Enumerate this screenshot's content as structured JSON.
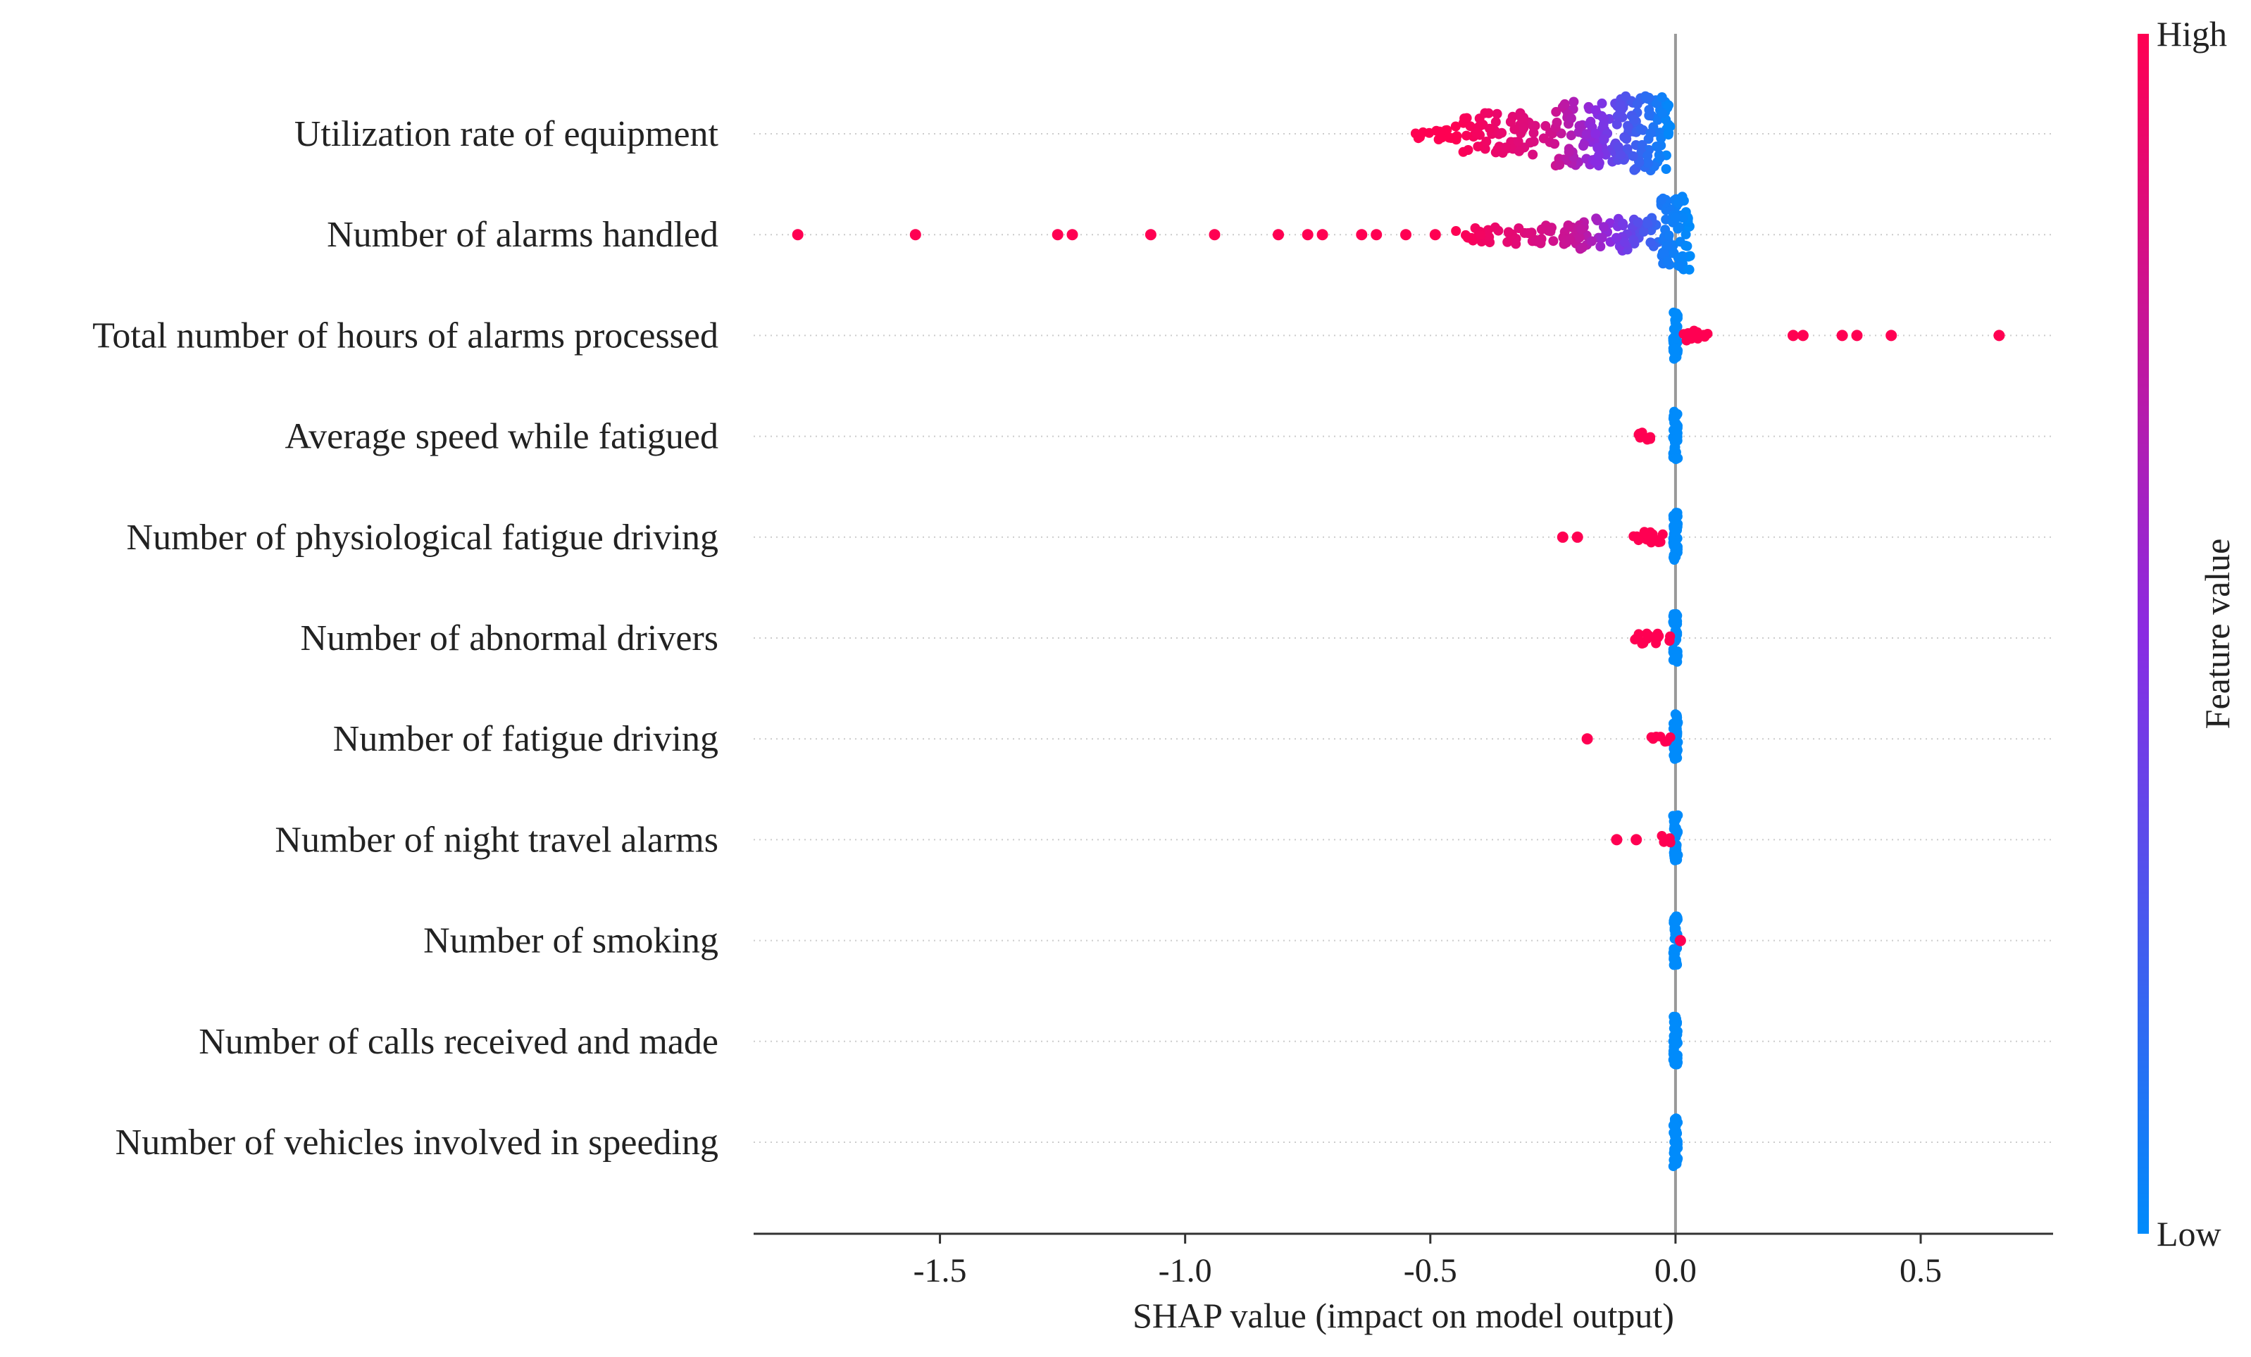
{
  "chart_data": {
    "type": "scatter",
    "subtype": "shap-beeswarm",
    "title": "",
    "xlabel": "SHAP value (impact on model output)",
    "ylabel": "",
    "xlim": [
      -1.88,
      0.77
    ],
    "xticks": [
      -1.5,
      -1.0,
      -0.5,
      0.0,
      0.5
    ],
    "xtick_labels": [
      "-1.5",
      "-1.0",
      "-0.5",
      "0.0",
      "0.5"
    ],
    "zero_line": 0.0,
    "colorbar": {
      "label": "Feature value",
      "high_label": "High",
      "low_label": "Low",
      "high_color": "#ff0052",
      "mid_color": "#8a2be2",
      "low_color": "#008bfb"
    },
    "features": [
      {
        "name": "Utilization rate of equipment",
        "clusters": [
          {
            "from": -0.54,
            "to": -0.45,
            "count": 16,
            "spread": 0.15,
            "color_from": 1.0,
            "color_to": 1.0
          },
          {
            "from": -0.45,
            "to": -0.25,
            "count": 70,
            "spread": 0.55,
            "color_from": 1.0,
            "color_to": 0.8
          },
          {
            "from": -0.25,
            "to": -0.12,
            "count": 80,
            "spread": 0.85,
            "color_from": 0.8,
            "color_to": 0.35
          },
          {
            "from": -0.12,
            "to": -0.01,
            "count": 100,
            "spread": 1.0,
            "color_from": 0.35,
            "color_to": 0.0
          }
        ],
        "points": []
      },
      {
        "name": "Number of alarms handled",
        "clusters": [
          {
            "from": -0.45,
            "to": -0.2,
            "count": 60,
            "spread": 0.25,
            "color_from": 1.0,
            "color_to": 0.75
          },
          {
            "from": -0.2,
            "to": -0.03,
            "count": 60,
            "spread": 0.45,
            "color_from": 0.75,
            "color_to": 0.15
          },
          {
            "from": -0.03,
            "to": 0.03,
            "count": 70,
            "spread": 1.0,
            "color_from": 0.1,
            "color_to": 0.0
          }
        ],
        "points": [
          {
            "x": -1.79,
            "c": 1.0
          },
          {
            "x": -1.55,
            "c": 1.0
          },
          {
            "x": -1.26,
            "c": 1.0
          },
          {
            "x": -1.23,
            "c": 1.0
          },
          {
            "x": -1.07,
            "c": 1.0
          },
          {
            "x": -0.94,
            "c": 1.0
          },
          {
            "x": -0.81,
            "c": 1.0
          },
          {
            "x": -0.75,
            "c": 1.0
          },
          {
            "x": -0.72,
            "c": 1.0
          },
          {
            "x": -0.64,
            "c": 1.0
          },
          {
            "x": -0.61,
            "c": 1.0
          },
          {
            "x": -0.55,
            "c": 1.0
          },
          {
            "x": -0.49,
            "c": 1.0
          }
        ]
      },
      {
        "name": "Total number of hours of alarms processed",
        "clusters": [
          {
            "from": -0.005,
            "to": 0.005,
            "count": 40,
            "spread": 0.65,
            "color_from": 0.0,
            "color_to": 0.0
          },
          {
            "from": 0.01,
            "to": 0.07,
            "count": 12,
            "spread": 0.15,
            "color_from": 1.0,
            "color_to": 1.0
          }
        ],
        "points": [
          {
            "x": 0.24,
            "c": 1.0
          },
          {
            "x": 0.26,
            "c": 1.0
          },
          {
            "x": 0.34,
            "c": 1.0
          },
          {
            "x": 0.37,
            "c": 1.0
          },
          {
            "x": 0.44,
            "c": 1.0
          },
          {
            "x": 0.66,
            "c": 1.0
          }
        ]
      },
      {
        "name": "Average speed while fatigued",
        "clusters": [
          {
            "from": -0.005,
            "to": 0.005,
            "count": 40,
            "spread": 0.65,
            "color_from": 0.0,
            "color_to": 0.0
          },
          {
            "from": -0.09,
            "to": -0.05,
            "count": 10,
            "spread": 0.12,
            "color_from": 1.0,
            "color_to": 1.0
          }
        ],
        "points": []
      },
      {
        "name": "Number of physiological fatigue driving",
        "clusters": [
          {
            "from": -0.005,
            "to": 0.005,
            "count": 40,
            "spread": 0.65,
            "color_from": 0.0,
            "color_to": 0.0
          },
          {
            "from": -0.1,
            "to": -0.02,
            "count": 14,
            "spread": 0.15,
            "color_from": 1.0,
            "color_to": 1.0
          }
        ],
        "points": [
          {
            "x": -0.23,
            "c": 1.0
          },
          {
            "x": -0.2,
            "c": 1.0
          }
        ]
      },
      {
        "name": "Number of abnormal drivers",
        "clusters": [
          {
            "from": -0.005,
            "to": 0.005,
            "count": 40,
            "spread": 0.65,
            "color_from": 0.0,
            "color_to": 0.0
          },
          {
            "from": -0.09,
            "to": -0.01,
            "count": 20,
            "spread": 0.15,
            "color_from": 1.0,
            "color_to": 1.0
          }
        ],
        "points": []
      },
      {
        "name": "Number of fatigue driving",
        "clusters": [
          {
            "from": -0.005,
            "to": 0.005,
            "count": 40,
            "spread": 0.65,
            "color_from": 0.0,
            "color_to": 0.0
          },
          {
            "from": -0.05,
            "to": -0.01,
            "count": 8,
            "spread": 0.12,
            "color_from": 1.0,
            "color_to": 1.0
          }
        ],
        "points": [
          {
            "x": -0.18,
            "c": 1.0
          }
        ]
      },
      {
        "name": "Number of night travel alarms",
        "clusters": [
          {
            "from": -0.005,
            "to": 0.005,
            "count": 40,
            "spread": 0.65,
            "color_from": 0.0,
            "color_to": 0.0
          },
          {
            "from": -0.03,
            "to": -0.01,
            "count": 5,
            "spread": 0.1,
            "color_from": 1.0,
            "color_to": 1.0
          }
        ],
        "points": [
          {
            "x": -0.12,
            "c": 1.0
          },
          {
            "x": -0.08,
            "c": 1.0
          }
        ]
      },
      {
        "name": "Number of smoking",
        "clusters": [
          {
            "from": -0.005,
            "to": 0.005,
            "count": 40,
            "spread": 0.65,
            "color_from": 0.0,
            "color_to": 0.0
          }
        ],
        "points": [
          {
            "x": 0.01,
            "c": 1.0
          }
        ]
      },
      {
        "name": "Number of calls received and made",
        "clusters": [
          {
            "from": -0.005,
            "to": 0.005,
            "count": 40,
            "spread": 0.65,
            "color_from": 0.0,
            "color_to": 0.0
          }
        ],
        "points": []
      },
      {
        "name": "Number of vehicles involved in speeding",
        "clusters": [
          {
            "from": -0.005,
            "to": 0.005,
            "count": 40,
            "spread": 0.65,
            "color_from": 0.0,
            "color_to": 0.0
          }
        ],
        "points": []
      }
    ]
  }
}
